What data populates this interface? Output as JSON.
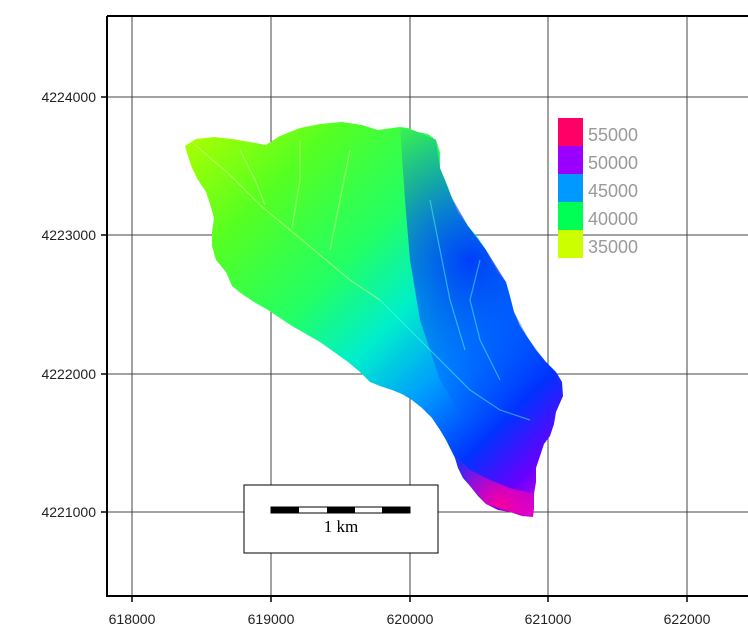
{
  "map": {
    "x_ticks": [
      "618000",
      "619000",
      "620000",
      "621000",
      "622000"
    ],
    "y_ticks": [
      "4224000",
      "4223000",
      "4222000",
      "4221000"
    ],
    "legend": [
      {
        "label": "55000",
        "color": "#ff0066"
      },
      {
        "label": "50000",
        "color": "#9900ff"
      },
      {
        "label": "45000",
        "color": "#0099ff"
      },
      {
        "label": "40000",
        "color": "#00ff55"
      },
      {
        "label": "35000",
        "color": "#ccff00"
      }
    ],
    "scale_bar": {
      "label": "1 km"
    },
    "colors": {
      "west": "#aaff00",
      "mid": "#22ff44",
      "center": "#00eecc",
      "east": "#0033ff",
      "south": "#ff00cc"
    }
  }
}
